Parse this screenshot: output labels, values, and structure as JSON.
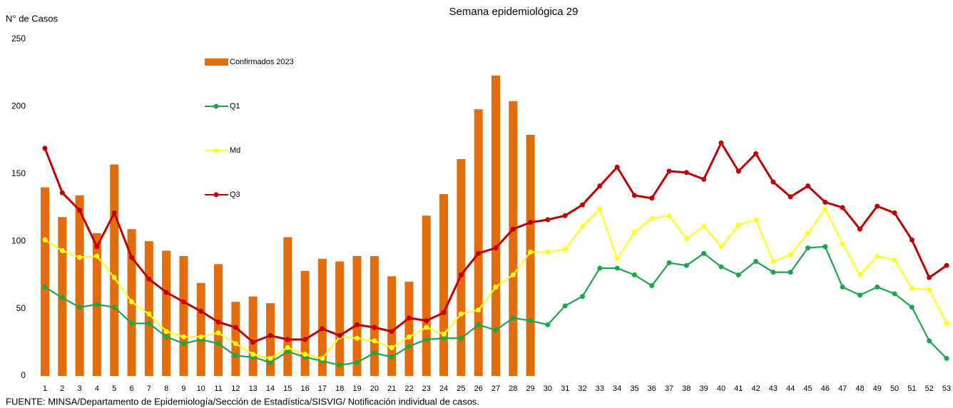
{
  "chart_data": {
    "type": "combo",
    "title": "Semana epidemiológica 29",
    "y_label": "N° de Casos",
    "source": "FUENTE: MINSA/Departamento de Epidemiología/Sección de Estadística/SISVIG/ Notificación individual de casos.",
    "categories": [
      "1",
      "2",
      "3",
      "4",
      "5",
      "6",
      "7",
      "8",
      "9",
      "10",
      "11",
      "12",
      "13",
      "14",
      "15",
      "16",
      "17",
      "18",
      "19",
      "20",
      "21",
      "22",
      "23",
      "24",
      "25",
      "26",
      "27",
      "28",
      "29",
      "30",
      "31",
      "32",
      "33",
      "34",
      "35",
      "36",
      "37",
      "38",
      "39",
      "40",
      "41",
      "42",
      "43",
      "44",
      "45",
      "46",
      "47",
      "48",
      "49",
      "50",
      "51",
      "52",
      "53"
    ],
    "ylim": [
      0,
      250
    ],
    "yticks": [
      0,
      50,
      100,
      150,
      200,
      250
    ],
    "series": [
      {
        "name": "Confirmados 2023",
        "type": "bar",
        "color": "#e46c0a",
        "values": [
          140,
          118,
          134,
          106,
          157,
          109,
          100,
          93,
          89,
          69,
          83,
          55,
          59,
          54,
          103,
          78,
          87,
          85,
          89,
          89,
          74,
          70,
          119,
          135,
          161,
          198,
          223,
          204,
          179,
          null,
          null,
          null,
          null,
          null,
          null,
          null,
          null,
          null,
          null,
          null,
          null,
          null,
          null,
          null,
          null,
          null,
          null,
          null,
          null,
          null,
          null,
          null,
          null
        ]
      },
      {
        "name": "Q1",
        "type": "line",
        "color": "#1aa64a",
        "values": [
          66,
          58,
          51,
          53,
          51,
          39,
          39,
          29,
          24,
          27,
          24,
          15,
          14,
          10,
          18,
          14,
          11,
          8,
          10,
          17,
          14,
          22,
          27,
          28,
          28,
          38,
          34,
          43,
          41,
          38,
          52,
          59,
          80,
          80,
          75,
          67,
          84,
          82,
          91,
          81,
          75,
          85,
          77,
          77,
          95,
          96,
          66,
          60,
          66,
          61,
          51,
          26,
          13
        ]
      },
      {
        "name": "Md",
        "type": "line",
        "color": "#ffff1a",
        "values": [
          101,
          93,
          88,
          89,
          73,
          55,
          46,
          33,
          29,
          29,
          32,
          24,
          16,
          13,
          21,
          16,
          13,
          29,
          28,
          26,
          21,
          29,
          36,
          31,
          46,
          49,
          66,
          75,
          92,
          92,
          94,
          111,
          124,
          87,
          107,
          117,
          119,
          102,
          111,
          96,
          112,
          116,
          85,
          90,
          106,
          124,
          98,
          75,
          89,
          86,
          65,
          64,
          39
        ]
      },
      {
        "name": "Q3",
        "type": "line",
        "color": "#c00000",
        "values": [
          169,
          136,
          123,
          96,
          121,
          88,
          72,
          62,
          55,
          48,
          40,
          36,
          25,
          30,
          27,
          27,
          35,
          30,
          38,
          36,
          33,
          43,
          41,
          47,
          75,
          91,
          95,
          109,
          114,
          116,
          119,
          127,
          141,
          155,
          134,
          132,
          152,
          151,
          146,
          173,
          152,
          165,
          144,
          133,
          141,
          129,
          125,
          109,
          126,
          121,
          101,
          73,
          82
        ]
      }
    ]
  }
}
